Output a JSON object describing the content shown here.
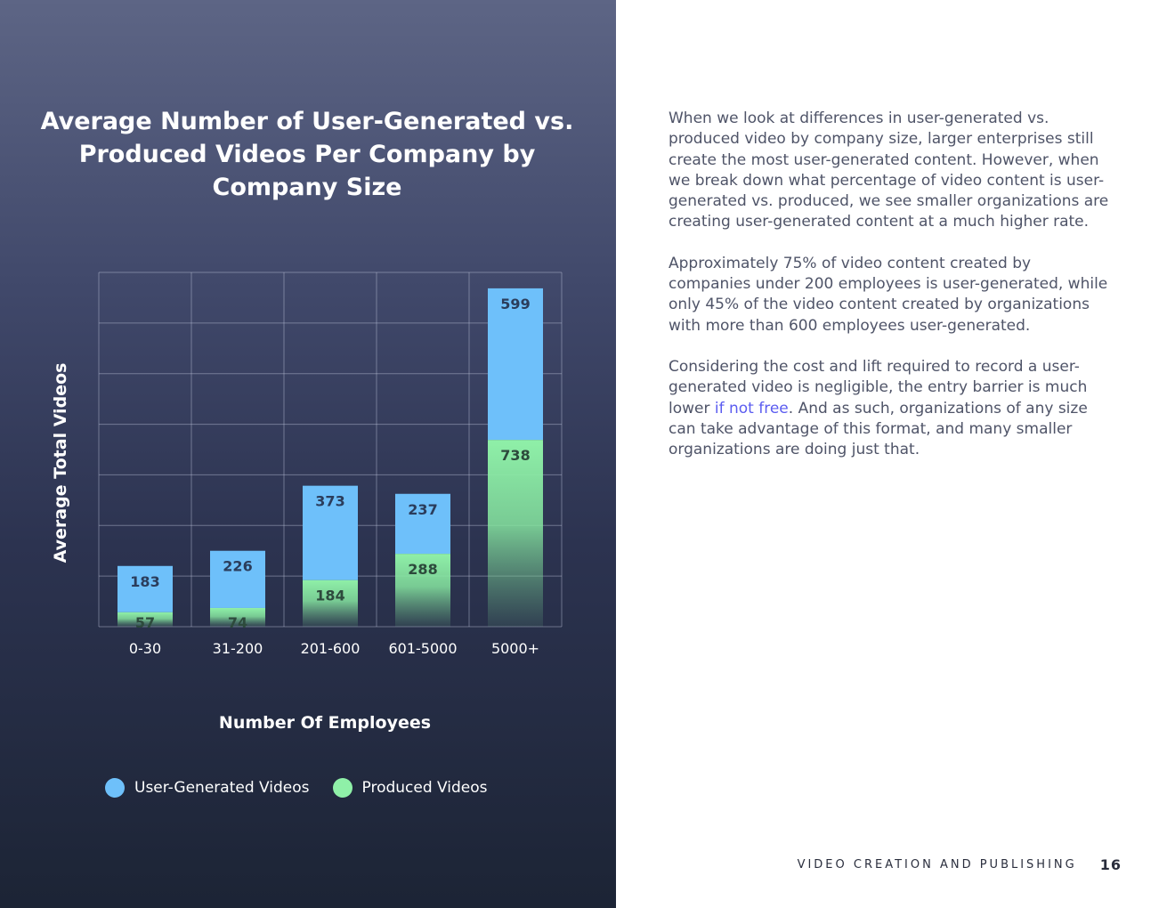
{
  "chart_data": {
    "type": "bar",
    "stacked": true,
    "title": "Average Number of User-Generated vs. Produced Videos Per Company by Company Size",
    "xlabel": "Number Of Employees",
    "ylabel": "Average Total Videos",
    "categories": [
      "0-30",
      "31-200",
      "201-600",
      "601-5000",
      "5000+"
    ],
    "series": [
      {
        "name": "Produced Videos",
        "values": [
          57,
          74,
          184,
          288,
          738
        ],
        "color": "#8ff0a8"
      },
      {
        "name": "User-Generated Videos",
        "values": [
          183,
          226,
          373,
          237,
          599
        ],
        "color": "#6ec0fa"
      }
    ],
    "ylim": [
      0,
      1400
    ],
    "grid": true,
    "legend": "bottom"
  },
  "body": {
    "paragraph_1": "When we look at differences in user-generated vs. produced video by company size, larger enterprises still create the most user-generated content. However, when we break down what percentage of video content is user-generated vs. produced, we see smaller organizations are creating user-generated content at a much higher rate.",
    "paragraph_2": "Approximately 75% of video content created by companies under 200 employees is user-generated, while only 45% of the video content created by organizations with more than 600 employees user-generated.",
    "paragraph_3_before": "Considering the cost and lift required to record a user-generated video is negligible, the entry barrier is much lower ",
    "paragraph_3_link": "if not free",
    "paragraph_3_after": ". And as such, organizations of any size can take advantage of this format, and many smaller organizations are doing just that."
  },
  "footer": {
    "section_label": "VIDEO CREATION AND PUBLISHING",
    "page_number": "16"
  }
}
